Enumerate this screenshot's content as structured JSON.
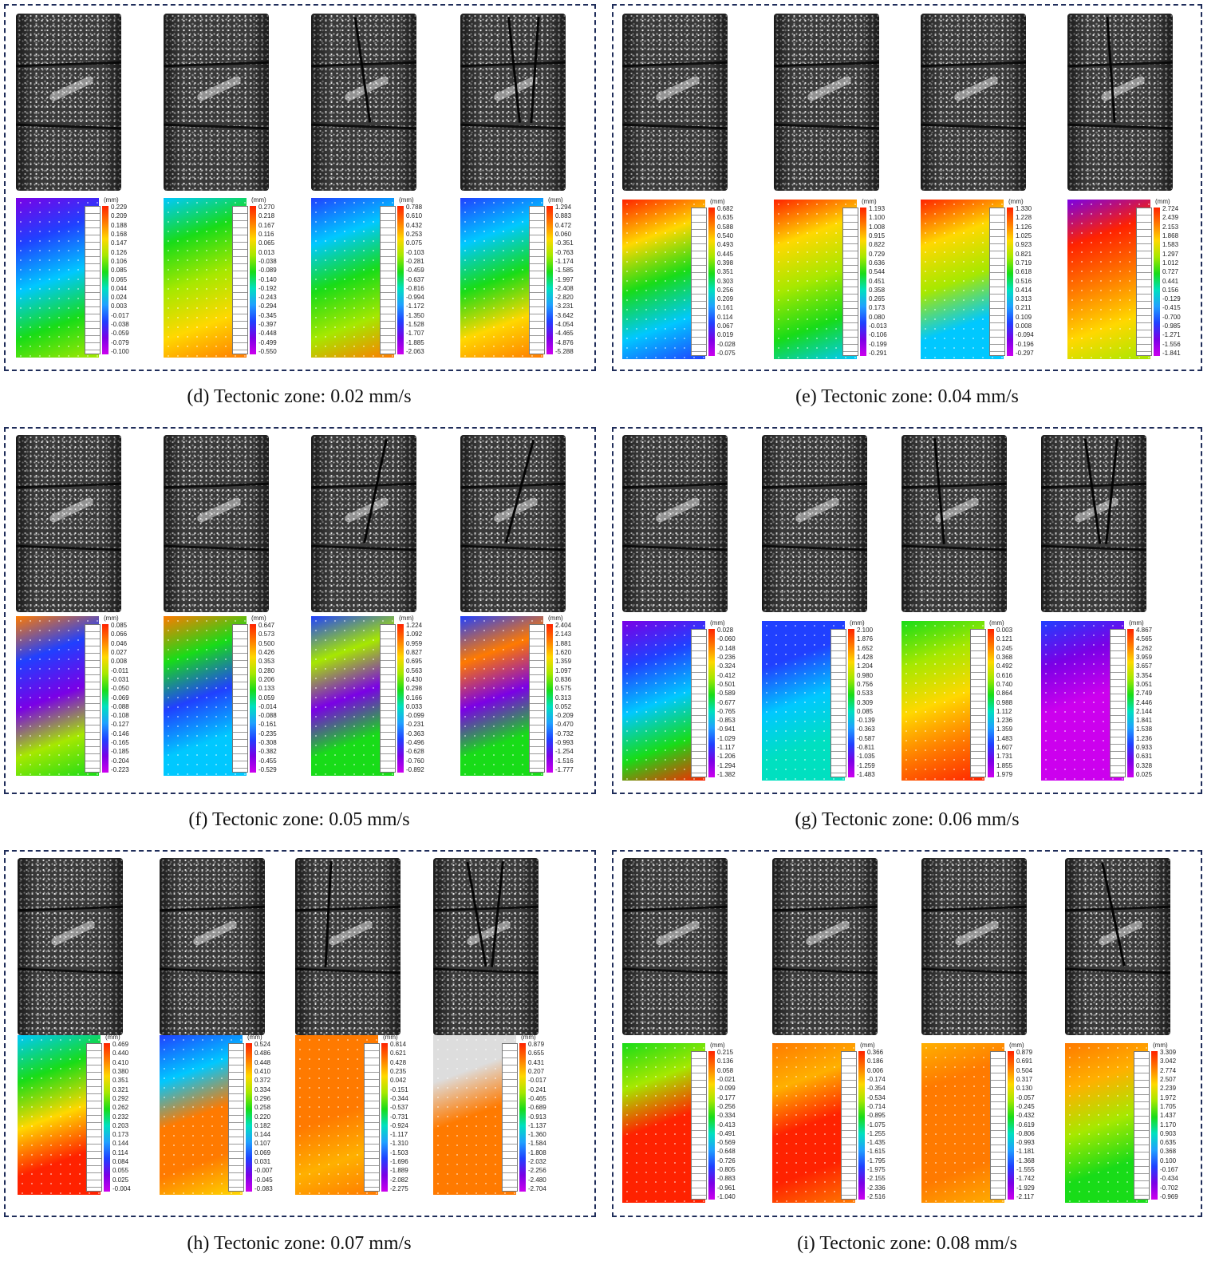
{
  "panels": [
    {
      "caption": "(d) Tectonic zone: 0.02 mm/s",
      "maps": [
        {
          "unit": "(mm)",
          "labels": [
            "0.229",
            "0.209",
            "0.188",
            "0.168",
            "0.147",
            "0.126",
            "0.106",
            "0.085",
            "0.065",
            "0.044",
            "0.024",
            "0.003",
            "-0.017",
            "-0.038",
            "-0.059",
            "-0.079",
            "-0.100"
          ],
          "colors": [
            "#7a00e6",
            "#2040ff",
            "#00c8ff",
            "#18dc18",
            "#a6e800"
          ]
        },
        {
          "unit": "(mm)",
          "labels": [
            "0.270",
            "0.218",
            "0.167",
            "0.116",
            "0.065",
            "0.013",
            "-0.038",
            "-0.089",
            "-0.140",
            "-0.192",
            "-0.243",
            "-0.294",
            "-0.345",
            "-0.397",
            "-0.448",
            "-0.499",
            "-0.550"
          ],
          "colors": [
            "#00c8ff",
            "#18dc18",
            "#a6e800",
            "#ffd800",
            "#ff7a00"
          ]
        },
        {
          "unit": "(mm)",
          "labels": [
            "0.788",
            "0.610",
            "0.432",
            "0.253",
            "0.075",
            "-0.103",
            "-0.281",
            "-0.459",
            "-0.637",
            "-0.816",
            "-0.994",
            "-1.172",
            "-1.350",
            "-1.528",
            "-1.707",
            "-1.885",
            "-2.063"
          ],
          "colors": [
            "#2040ff",
            "#00c8ff",
            "#18dc18",
            "#a6e800",
            "#ff7a00"
          ]
        },
        {
          "unit": "(mm)",
          "labels": [
            "1.294",
            "0.883",
            "0.472",
            "0.060",
            "-0.351",
            "-0.763",
            "-1.174",
            "-1.585",
            "-1.997",
            "-2.408",
            "-2.820",
            "-3.231",
            "-3.642",
            "-4.054",
            "-4.465",
            "-4.876",
            "-5.288"
          ],
          "colors": [
            "#2040ff",
            "#00c8ff",
            "#18dc18",
            "#ffd800",
            "#ff7a00"
          ]
        }
      ]
    },
    {
      "caption": "(e) Tectonic zone: 0.04 mm/s",
      "maps": [
        {
          "unit": "(mm)",
          "labels": [
            "0.682",
            "0.635",
            "0.588",
            "0.540",
            "0.493",
            "0.445",
            "0.398",
            "0.351",
            "0.303",
            "0.256",
            "0.209",
            "0.161",
            "0.114",
            "0.067",
            "0.019",
            "-0.028",
            "-0.075"
          ],
          "colors": [
            "#ff2200",
            "#ffd800",
            "#18dc18",
            "#00c8ff",
            "#2040ff"
          ]
        },
        {
          "unit": "(mm)",
          "labels": [
            "1.193",
            "1.100",
            "1.008",
            "0.915",
            "0.822",
            "0.729",
            "0.636",
            "0.544",
            "0.451",
            "0.358",
            "0.265",
            "0.173",
            "0.080",
            "-0.013",
            "-0.106",
            "-0.199",
            "-0.291"
          ],
          "colors": [
            "#ff2200",
            "#ffd800",
            "#a6e800",
            "#18dc18",
            "#00c8ff"
          ]
        },
        {
          "unit": "(mm)",
          "labels": [
            "1.330",
            "1.228",
            "1.126",
            "1.025",
            "0.923",
            "0.821",
            "0.719",
            "0.618",
            "0.516",
            "0.414",
            "0.313",
            "0.211",
            "0.109",
            "0.008",
            "-0.094",
            "-0.196",
            "-0.297"
          ],
          "colors": [
            "#ff2200",
            "#ffd800",
            "#a6e800",
            "#00c8ff",
            "#00c8ff"
          ]
        },
        {
          "unit": "(mm)",
          "labels": [
            "2.724",
            "2.439",
            "2.153",
            "1.868",
            "1.583",
            "1.297",
            "1.012",
            "0.727",
            "0.441",
            "0.156",
            "-0.129",
            "-0.415",
            "-0.700",
            "-0.985",
            "-1.271",
            "-1.556",
            "-1.841"
          ],
          "colors": [
            "#7a00e6",
            "#ff2200",
            "#ff7a00",
            "#ffd800",
            "#a6e800"
          ]
        }
      ]
    },
    {
      "caption": "(f) Tectonic zone: 0.05 mm/s",
      "maps": [
        {
          "unit": "(mm)",
          "labels": [
            "0.085",
            "0.066",
            "0.046",
            "0.027",
            "0.008",
            "-0.011",
            "-0.031",
            "-0.050",
            "-0.069",
            "-0.088",
            "-0.108",
            "-0.127",
            "-0.146",
            "-0.165",
            "-0.185",
            "-0.204",
            "-0.223"
          ],
          "colors": [
            "#ff7a00",
            "#2040ff",
            "#7a00e6",
            "#a6e800",
            "#18dc18"
          ]
        },
        {
          "unit": "(mm)",
          "labels": [
            "0.647",
            "0.573",
            "0.500",
            "0.426",
            "0.353",
            "0.280",
            "0.206",
            "0.133",
            "0.059",
            "-0.014",
            "-0.088",
            "-0.161",
            "-0.235",
            "-0.308",
            "-0.382",
            "-0.455",
            "-0.529"
          ],
          "colors": [
            "#ff7a00",
            "#18dc18",
            "#2040ff",
            "#00c8ff",
            "#00c8ff"
          ]
        },
        {
          "unit": "(mm)",
          "labels": [
            "1.224",
            "1.092",
            "0.959",
            "0.827",
            "0.695",
            "0.563",
            "0.430",
            "0.298",
            "0.166",
            "0.033",
            "-0.099",
            "-0.231",
            "-0.363",
            "-0.496",
            "-0.628",
            "-0.760",
            "-0.892"
          ],
          "colors": [
            "#2040ff",
            "#a6e800",
            "#7a00e6",
            "#18dc18",
            "#18dc18"
          ]
        },
        {
          "unit": "(mm)",
          "labels": [
            "2.404",
            "2.143",
            "1.881",
            "1.620",
            "1.359",
            "1.097",
            "0.836",
            "0.575",
            "0.313",
            "0.052",
            "-0.209",
            "-0.470",
            "-0.732",
            "-0.993",
            "-1.254",
            "-1.516",
            "-1.777"
          ],
          "colors": [
            "#2040ff",
            "#ff7a00",
            "#7a00e6",
            "#18dc18",
            "#18dc18"
          ]
        }
      ]
    },
    {
      "caption": "(g) Tectonic zone: 0.06 mm/s",
      "maps": [
        {
          "unit": "(mm)",
          "labels": [
            "0.028",
            "-0.060",
            "-0.148",
            "-0.236",
            "-0.324",
            "-0.412",
            "-0.501",
            "-0.589",
            "-0.677",
            "-0.765",
            "-0.853",
            "-0.941",
            "-1.029",
            "-1.117",
            "-1.206",
            "-1.294",
            "-1.382"
          ],
          "colors": [
            "#7a00e6",
            "#2040ff",
            "#00c8ff",
            "#18dc18",
            "#ff2200"
          ]
        },
        {
          "unit": "(mm)",
          "labels": [
            "2.100",
            "1.876",
            "1.652",
            "1.428",
            "1.204",
            "0.980",
            "0.756",
            "0.533",
            "0.309",
            "0.085",
            "-0.139",
            "-0.363",
            "-0.587",
            "-0.811",
            "-1.035",
            "-1.259",
            "-1.483"
          ],
          "colors": [
            "#2040ff",
            "#2040ff",
            "#00c8ff",
            "#00e0c0",
            "#00e0c0"
          ]
        },
        {
          "unit": "(mm)",
          "labels": [
            "0.003",
            "0.121",
            "0.245",
            "0.368",
            "0.492",
            "0.616",
            "0.740",
            "0.864",
            "0.988",
            "1.112",
            "1.236",
            "1.359",
            "1.483",
            "1.607",
            "1.731",
            "1.855",
            "1.979"
          ],
          "colors": [
            "#18dc18",
            "#a6e800",
            "#ffd800",
            "#ff7a00",
            "#ff2200"
          ]
        },
        {
          "unit": "(mm)",
          "labels": [
            "4.867",
            "4.565",
            "4.262",
            "3.959",
            "3.657",
            "3.354",
            "3.051",
            "2.749",
            "2.446",
            "2.144",
            "1.841",
            "1.538",
            "1.236",
            "0.933",
            "0.631",
            "0.328",
            "0.025"
          ],
          "colors": [
            "#2040ff",
            "#7a00e6",
            "#cc00ee",
            "#cc00ee",
            "#cc00ee"
          ]
        }
      ]
    },
    {
      "caption": "(h) Tectonic zone: 0.07 mm/s",
      "maps": [
        {
          "unit": "(mm)",
          "labels": [
            "0.469",
            "0.440",
            "0.410",
            "0.380",
            "0.351",
            "0.321",
            "0.292",
            "0.262",
            "0.232",
            "0.203",
            "0.173",
            "0.144",
            "0.114",
            "0.084",
            "0.055",
            "0.025",
            "-0.004"
          ],
          "colors": [
            "#00c8ff",
            "#18dc18",
            "#ffd800",
            "#ff2200",
            "#ff2200"
          ]
        },
        {
          "unit": "(mm)",
          "labels": [
            "0.524",
            "0.486",
            "0.448",
            "0.410",
            "0.372",
            "0.334",
            "0.296",
            "0.258",
            "0.220",
            "0.182",
            "0.144",
            "0.107",
            "0.069",
            "0.031",
            "-0.007",
            "-0.045",
            "-0.083"
          ],
          "colors": [
            "#2040ff",
            "#00c8ff",
            "#ff7a00",
            "#ff7a00",
            "#ffd800"
          ]
        },
        {
          "unit": "(mm)",
          "labels": [
            "0.814",
            "0.621",
            "0.428",
            "0.235",
            "0.042",
            "-0.151",
            "-0.344",
            "-0.537",
            "-0.731",
            "-0.924",
            "-1.117",
            "-1.310",
            "-1.503",
            "-1.696",
            "-1.889",
            "-2.082",
            "-2.275"
          ],
          "colors": [
            "#ff7a00",
            "#ff7a00",
            "#ff7a00",
            "#ffb000",
            "#ff7a00"
          ]
        },
        {
          "unit": "(mm)",
          "labels": [
            "0.879",
            "0.655",
            "0.431",
            "0.207",
            "-0.017",
            "-0.241",
            "-0.465",
            "-0.689",
            "-0.913",
            "-1.137",
            "-1.360",
            "-1.584",
            "-1.808",
            "-2.032",
            "-2.256",
            "-2.480",
            "-2.704"
          ],
          "colors": [
            "#dddddd",
            "#dddddd",
            "#ff7a00",
            "#ff7a00",
            "#ff7a00"
          ]
        }
      ]
    },
    {
      "caption": "(i) Tectonic zone: 0.08 mm/s",
      "maps": [
        {
          "unit": "(mm)",
          "labels": [
            "0.215",
            "0.136",
            "0.058",
            "-0.021",
            "-0.099",
            "-0.177",
            "-0.256",
            "-0.334",
            "-0.413",
            "-0.491",
            "-0.569",
            "-0.648",
            "-0.726",
            "-0.805",
            "-0.883",
            "-0.961",
            "-1.040"
          ],
          "colors": [
            "#18dc18",
            "#a6e800",
            "#ff2200",
            "#ff2200",
            "#ff2200"
          ]
        },
        {
          "unit": "(mm)",
          "labels": [
            "0.366",
            "0.186",
            "0.006",
            "-0.174",
            "-0.354",
            "-0.534",
            "-0.714",
            "-0.895",
            "-1.075",
            "-1.255",
            "-1.435",
            "-1.615",
            "-1.795",
            "-1.975",
            "-2.155",
            "-2.336",
            "-2.516"
          ],
          "colors": [
            "#ff7a00",
            "#ffb000",
            "#ff2200",
            "#ff2200",
            "#ff7a00"
          ]
        },
        {
          "unit": "(mm)",
          "labels": [
            "0.879",
            "0.691",
            "0.504",
            "0.317",
            "0.130",
            "-0.057",
            "-0.245",
            "-0.432",
            "-0.619",
            "-0.806",
            "-0.993",
            "-1.181",
            "-1.368",
            "-1.555",
            "-1.742",
            "-1.929",
            "-2.117"
          ],
          "colors": [
            "#ffb000",
            "#ff7a00",
            "#ff7a00",
            "#ff7a00",
            "#ffb000"
          ]
        },
        {
          "unit": "(mm)",
          "labels": [
            "3.309",
            "3.042",
            "2.774",
            "2.507",
            "2.239",
            "1.972",
            "1.705",
            "1.437",
            "1.170",
            "0.903",
            "0.635",
            "0.368",
            "0.100",
            "-0.167",
            "-0.434",
            "-0.702",
            "-0.969"
          ],
          "colors": [
            "#ff7a00",
            "#ffb000",
            "#a6e800",
            "#18dc18",
            "#18dc18"
          ]
        }
      ]
    }
  ]
}
